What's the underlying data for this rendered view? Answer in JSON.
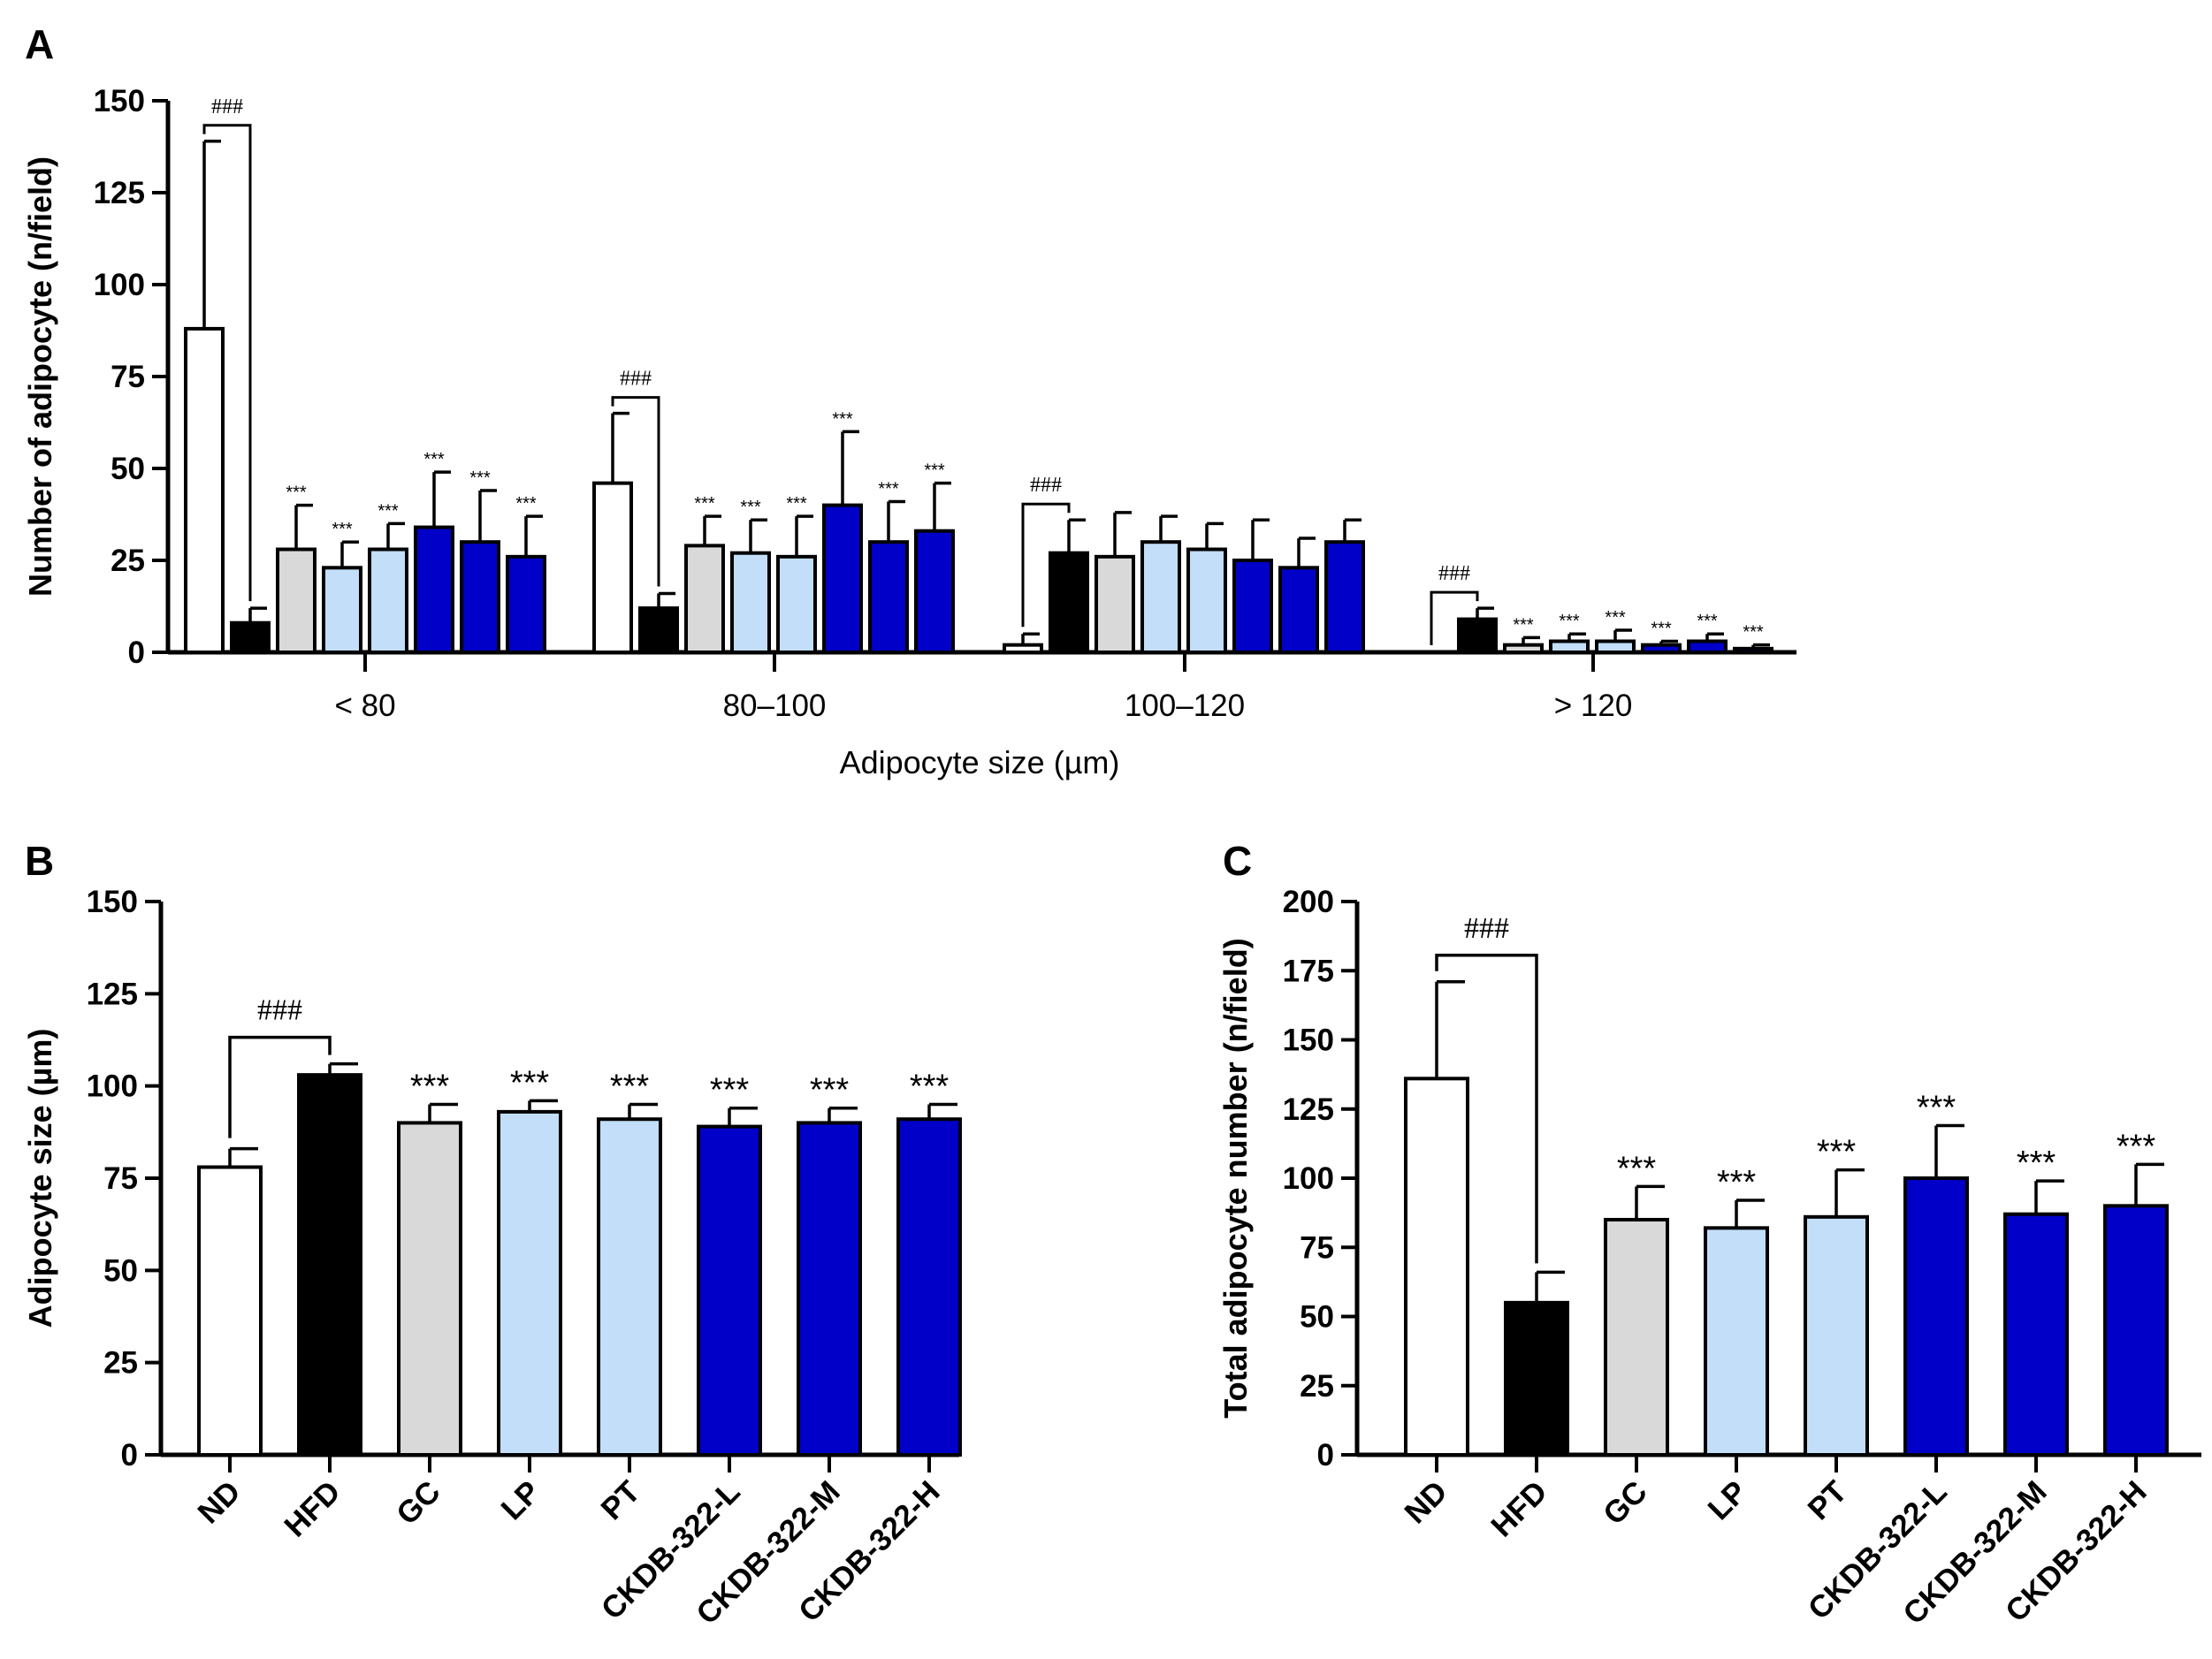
{
  "colors": {
    "ND": "#ffffff",
    "HFD": "#000000",
    "GC": "#d9d9d9",
    "LP": "#c2def8",
    "PT": "#c2def8",
    "CKDB-322-L": "#0000c8",
    "CKDB-322-M": "#0000c8",
    "CKDB-322-H": "#0000c8"
  },
  "chart_data": [
    {
      "panel": "A",
      "type": "bar",
      "title": "",
      "xlabel": "Adipocyte size (µm)",
      "ylabel": "Number of adipocyte (n/field)",
      "ylim": [
        0,
        150
      ],
      "yticks": [
        "0",
        "25",
        "50",
        "75",
        "100",
        "125",
        "150"
      ],
      "groups": [
        "ND",
        "HFD",
        "GC",
        "LP",
        "PT",
        "CKDB-322-L",
        "CKDB-322-M",
        "CKDB-322-H"
      ],
      "categories": [
        "< 80",
        "80–100",
        "100–120",
        "> 120"
      ],
      "values": [
        [
          88,
          8,
          28,
          23,
          28,
          34,
          30,
          26
        ],
        [
          46,
          12,
          29,
          27,
          26,
          40,
          30,
          33
        ],
        [
          2,
          27,
          26,
          30,
          28,
          25,
          23,
          30
        ],
        [
          0,
          9,
          2,
          3,
          3,
          2,
          3,
          1
        ]
      ],
      "errors": [
        [
          51,
          4,
          12,
          7,
          7,
          15,
          14,
          11
        ],
        [
          19,
          4,
          8,
          9,
          11,
          20,
          11,
          13
        ],
        [
          3,
          9,
          12,
          7,
          7,
          11,
          8,
          6
        ],
        [
          0,
          3,
          2,
          2,
          3,
          1,
          2,
          1
        ]
      ],
      "significance": [
        [
          "",
          "",
          "***",
          "***",
          "***",
          "***",
          "***",
          "***"
        ],
        [
          "",
          "",
          "***",
          "***",
          "***",
          "***",
          "***",
          "***"
        ],
        [
          "",
          "",
          "",
          "",
          "",
          "",
          "",
          ""
        ],
        [
          "",
          "",
          "***",
          "***",
          "***",
          "***",
          "***",
          "***"
        ]
      ],
      "hash_label": "###"
    },
    {
      "panel": "B",
      "type": "bar",
      "title": "",
      "xlabel": "",
      "ylabel": "Adipocyte size (µm)",
      "ylim": [
        0,
        150
      ],
      "yticks": [
        "0",
        "25",
        "50",
        "75",
        "100",
        "125",
        "150"
      ],
      "categories": [
        "ND",
        "HFD",
        "GC",
        "LP",
        "PT",
        "CKDB-322-L",
        "CKDB-322-M",
        "CKDB-322-H"
      ],
      "values": [
        78,
        103,
        90,
        93,
        91,
        89,
        90,
        91
      ],
      "errors": [
        5,
        3,
        5,
        3,
        4,
        5,
        4,
        4
      ],
      "significance": [
        "",
        "",
        "***",
        "***",
        "***",
        "***",
        "***",
        "***"
      ],
      "hash_label": "###"
    },
    {
      "panel": "C",
      "type": "bar",
      "title": "",
      "xlabel": "",
      "ylabel": "Total adipocyte number (n/field)",
      "ylim": [
        0,
        200
      ],
      "yticks": [
        "0",
        "25",
        "50",
        "75",
        "100",
        "125",
        "150",
        "175",
        "200"
      ],
      "categories": [
        "ND",
        "HFD",
        "GC",
        "LP",
        "PT",
        "CKDB-322-L",
        "CKDB-322-M",
        "CKDB-322-H"
      ],
      "values": [
        136,
        55,
        85,
        82,
        86,
        100,
        87,
        90
      ],
      "errors": [
        35,
        11,
        12,
        10,
        17,
        19,
        12,
        15
      ],
      "significance": [
        "",
        "",
        "***",
        "***",
        "***",
        "***",
        "***",
        "***"
      ],
      "hash_label": "###"
    }
  ]
}
